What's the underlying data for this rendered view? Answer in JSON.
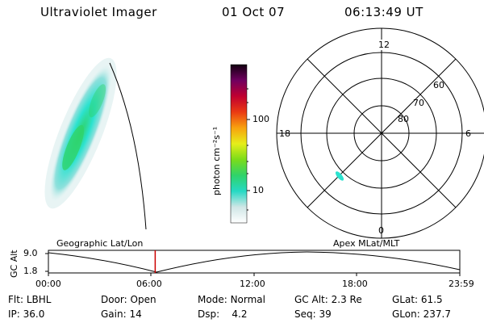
{
  "header": {
    "title": "Ultraviolet Imager",
    "date": "01 Oct 07",
    "time": "06:13:49 UT"
  },
  "colorbar": {
    "label": "photon cm⁻²s⁻¹",
    "ticks": [
      "100",
      "10"
    ]
  },
  "polar": {
    "mlt_labels": [
      "12",
      "18",
      "6",
      "0"
    ],
    "lat_labels": [
      "60",
      "70",
      "80"
    ]
  },
  "timeline": {
    "ylabel": "GC Alt",
    "yticks": [
      "9.0",
      "1.8"
    ],
    "left_caption": "Geographic Lat/Lon",
    "right_caption": "Apex MLat/MLT",
    "xticks": [
      "00:00",
      "06:00",
      "12:00",
      "18:00",
      "23:59"
    ],
    "marker_time_hours": 6.23
  },
  "info": {
    "row1": [
      {
        "label": "Flt:",
        "value": "LBHL"
      },
      {
        "label": "Door:",
        "value": "Open"
      },
      {
        "label": "Mode:",
        "value": "Normal"
      },
      {
        "label": "GC Alt:",
        "value": "2.3 Re"
      },
      {
        "label": "GLat:",
        "value": "61.5"
      }
    ],
    "row2": [
      {
        "label": "IP:",
        "value": "36.0"
      },
      {
        "label": "Gain:",
        "value": "14"
      },
      {
        "label": "Dsp:",
        "value": "4.2"
      },
      {
        "label": "Seq:",
        "value": "39"
      },
      {
        "label": "GLon:",
        "value": "237.7"
      }
    ]
  },
  "colors": {
    "aurora_core": "#2fd36a",
    "aurora_mid": "#2ce2cf",
    "aurora_edge": "#bfe8e6",
    "marker": "#cc0000"
  }
}
